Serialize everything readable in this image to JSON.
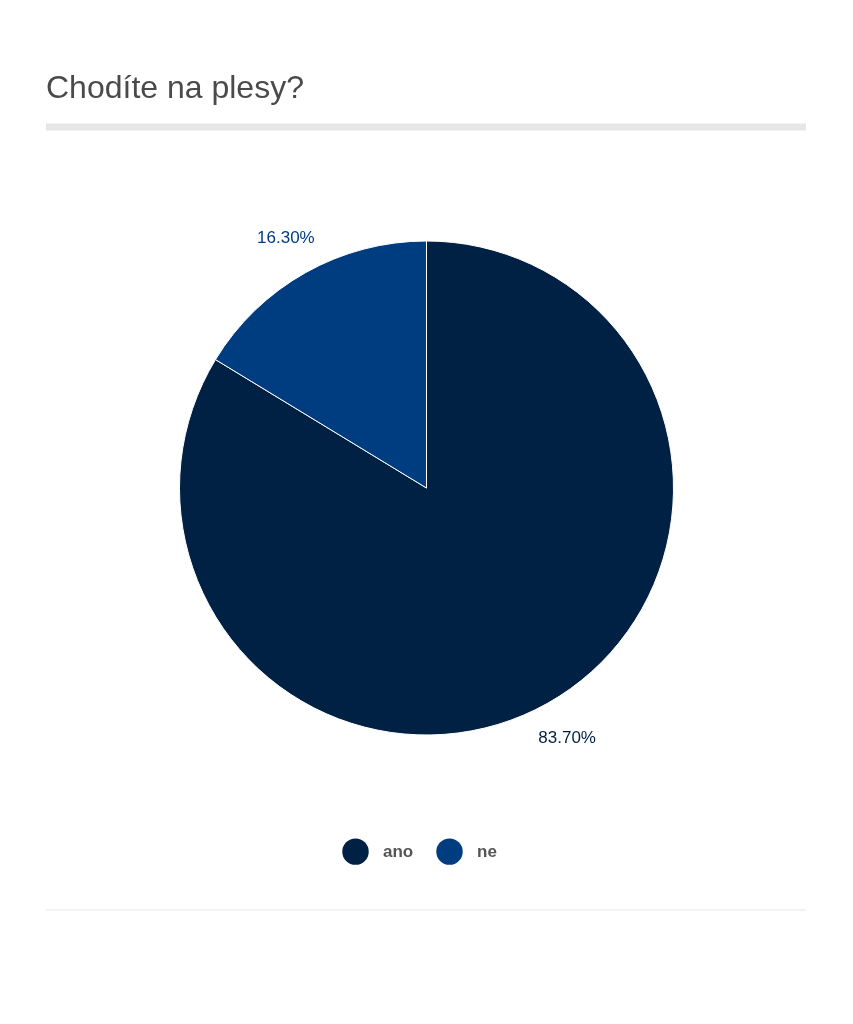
{
  "chart_data": {
    "type": "pie",
    "title": "Chodíte na plesy?",
    "categories": [
      "ano",
      "ne"
    ],
    "values": [
      83.7,
      16.3
    ],
    "colors": [
      "#002044",
      "#003d80"
    ],
    "value_labels": [
      "83.70%",
      "16.30%"
    ],
    "legend": "bottom"
  }
}
